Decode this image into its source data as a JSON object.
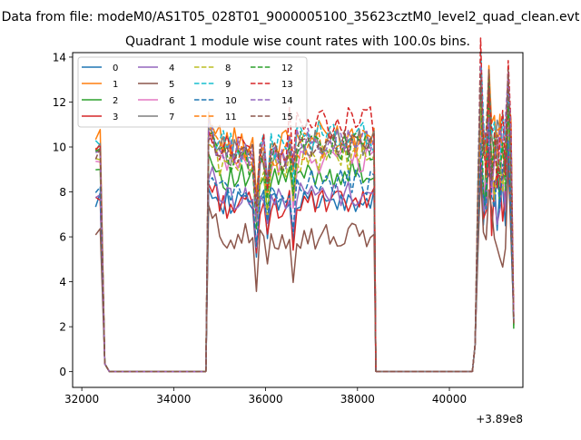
{
  "chart_data": {
    "type": "line",
    "suptitle": "Data from file: modeM0/AS1T05_028T01_9000005100_35623cztM0_level2_quad_clean.evt",
    "title": "Quadrant 1 module wise count rates with 100.0s bins.",
    "xlabel": "",
    "ylabel": "",
    "x_offset_label": "+3.89e8",
    "xlim": [
      31800,
      41600
    ],
    "ylim": [
      -0.7,
      14.2
    ],
    "xticks": [
      32000,
      34000,
      36000,
      38000,
      40000
    ],
    "yticks": [
      0,
      2,
      4,
      6,
      8,
      10,
      12,
      14
    ],
    "legend_position": "upper-left",
    "legend_columns": 4,
    "x_segments": [
      [
        32300,
        32400,
        32500,
        32600,
        32700,
        32800,
        32900,
        33000,
        33100,
        33200,
        33300,
        33400,
        33500,
        33600,
        33700,
        33800,
        33900,
        34000,
        34100,
        34200,
        34300,
        34400,
        34500,
        34600,
        34700
      ],
      [
        34700,
        34760,
        34840,
        34920,
        35000,
        35080,
        35160,
        35240,
        35320,
        35400,
        35480,
        35560,
        35640,
        35720,
        35800,
        35880,
        35960,
        36040,
        36120,
        36200,
        36280,
        36360,
        36440,
        36520,
        36600,
        36680,
        36760,
        36840,
        36920,
        37000,
        37080,
        37160,
        37240,
        37320,
        37400,
        37480,
        37560,
        37640,
        37720,
        37800,
        37880,
        37960,
        38040,
        38120,
        38200,
        38280,
        38360,
        38400
      ],
      [
        38400,
        38500,
        38600,
        38700,
        38800,
        38900,
        39000,
        39100,
        39200,
        39300,
        39400,
        39500,
        39600,
        39700,
        39800,
        39900,
        40000,
        40100,
        40200,
        40300,
        40400,
        40500
      ],
      [
        40500,
        40560,
        40620,
        40680,
        40740,
        40800,
        40860,
        40920,
        40980,
        41040,
        41100,
        41160,
        41220,
        41280,
        41340,
        41400
      ]
    ],
    "series": [
      {
        "name": "0",
        "color": "#1f77b4",
        "dash": "solid",
        "base": 7.5,
        "amp": 0.6,
        "bump": 0.0,
        "amp4": 1.4,
        "dip": 6.0
      },
      {
        "name": "1",
        "color": "#ff7f0e",
        "dash": "solid",
        "base": 10.2,
        "amp": 0.7,
        "bump": 0.3,
        "amp4": 1.5,
        "dip": 8.0
      },
      {
        "name": "2",
        "color": "#2ca02c",
        "dash": "solid",
        "base": 8.6,
        "amp": 0.6,
        "bump": 0.2,
        "amp4": 1.5,
        "dip": 6.5
      },
      {
        "name": "3",
        "color": "#d62728",
        "dash": "solid",
        "base": 7.4,
        "amp": 0.6,
        "bump": 0.1,
        "amp4": 1.5,
        "dip": 5.5
      },
      {
        "name": "4",
        "color": "#9467bd",
        "dash": "solid",
        "base": 7.8,
        "amp": 0.6,
        "bump": 0.1,
        "amp4": 1.5,
        "dip": 6.0
      },
      {
        "name": "5",
        "color": "#8c564b",
        "dash": "solid",
        "base": 6.0,
        "amp": 0.6,
        "bump": 0.0,
        "amp4": 1.4,
        "dip": 4.8
      },
      {
        "name": "6",
        "color": "#e377c2",
        "dash": "solid",
        "base": 9.3,
        "amp": 0.7,
        "bump": 0.2,
        "amp4": 1.5,
        "dip": 7.0
      },
      {
        "name": "7",
        "color": "#7f7f7f",
        "dash": "solid",
        "base": 9.8,
        "amp": 0.7,
        "bump": 0.3,
        "amp4": 1.5,
        "dip": 7.5
      },
      {
        "name": "8",
        "color": "#bcbd22",
        "dash": "dashed",
        "base": 9.1,
        "amp": 0.7,
        "bump": 0.4,
        "amp4": 1.5,
        "dip": 7.0
      },
      {
        "name": "9",
        "color": "#17becf",
        "dash": "dashed",
        "base": 10.0,
        "amp": 0.7,
        "bump": 0.5,
        "amp4": 1.6,
        "dip": 8.0
      },
      {
        "name": "10",
        "color": "#1f77b4",
        "dash": "dashed",
        "base": 8.0,
        "amp": 0.6,
        "bump": 0.4,
        "amp4": 1.5,
        "dip": 6.5
      },
      {
        "name": "11",
        "color": "#ff7f0e",
        "dash": "dashed",
        "base": 9.6,
        "amp": 0.7,
        "bump": 0.5,
        "amp4": 1.6,
        "dip": 7.5
      },
      {
        "name": "12",
        "color": "#2ca02c",
        "dash": "dashed",
        "base": 9.4,
        "amp": 0.7,
        "bump": 0.6,
        "amp4": 1.6,
        "dip": 7.5
      },
      {
        "name": "13",
        "color": "#d62728",
        "dash": "dashed",
        "base": 9.9,
        "amp": 0.8,
        "bump": 1.1,
        "amp4": 1.8,
        "dip": 8.0
      },
      {
        "name": "14",
        "color": "#9467bd",
        "dash": "dashed",
        "base": 9.7,
        "amp": 0.7,
        "bump": 0.6,
        "amp4": 1.6,
        "dip": 7.5
      },
      {
        "name": "15",
        "color": "#8c564b",
        "dash": "dashed",
        "base": 9.5,
        "amp": 0.7,
        "bump": 0.7,
        "amp4": 1.6,
        "dip": 7.5
      }
    ]
  }
}
